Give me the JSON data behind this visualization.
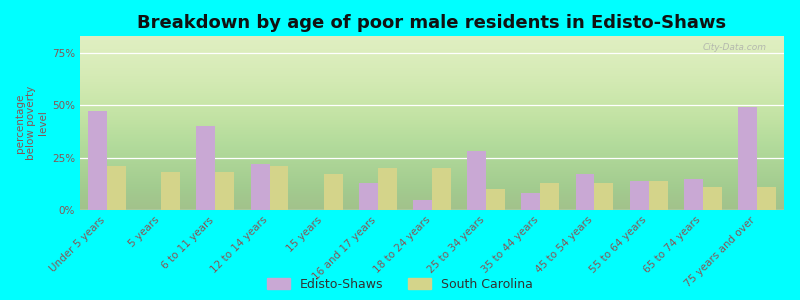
{
  "title": "Breakdown by age of poor male residents in Edisto-Shaws",
  "categories": [
    "Under 5 years",
    "5 years",
    "6 to 11 years",
    "12 to 14 years",
    "15 years",
    "16 and 17 years",
    "18 to 24 years",
    "25 to 34 years",
    "35 to 44 years",
    "45 to 54 years",
    "55 to 64 years",
    "65 to 74 years",
    "75 years and over"
  ],
  "edisto_values": [
    47,
    0,
    40,
    22,
    0,
    13,
    5,
    28,
    8,
    17,
    14,
    15,
    49
  ],
  "sc_values": [
    21,
    18,
    18,
    21,
    17,
    20,
    20,
    10,
    13,
    13,
    14,
    11,
    11
  ],
  "edisto_color": "#c9a8d4",
  "sc_color": "#d4d48a",
  "ylabel": "percentage\nbelow poverty\nlevel",
  "ylim": [
    0,
    83
  ],
  "yticks": [
    0,
    25,
    50,
    75
  ],
  "ytick_labels": [
    "0%",
    "25%",
    "50%",
    "75%"
  ],
  "plot_bg_top": "#f5f5e8",
  "plot_bg_bottom": "#d8ebb0",
  "outer_background": "#00ffff",
  "watermark": "City-Data.com",
  "legend_edisto": "Edisto-Shaws",
  "legend_sc": "South Carolina",
  "bar_width": 0.35,
  "title_fontsize": 13,
  "tick_fontsize": 7.5,
  "ylabel_fontsize": 7.5,
  "legend_fontsize": 9
}
